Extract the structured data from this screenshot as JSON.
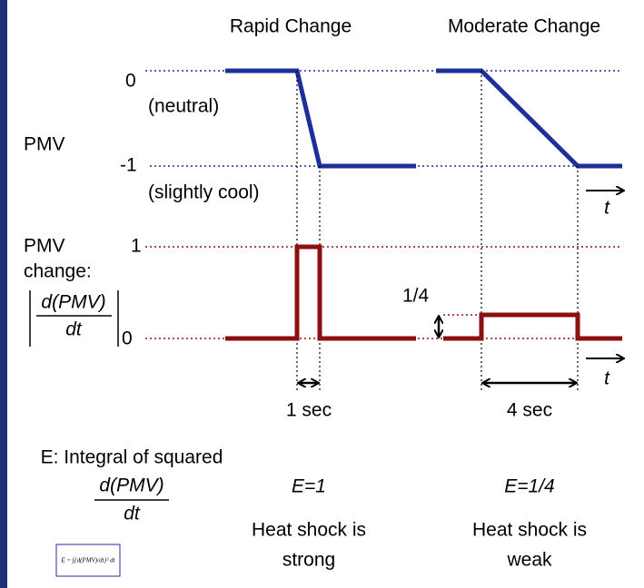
{
  "headers": {
    "rapid": "Rapid Change",
    "moderate": "Moderate Change"
  },
  "pmv_panel": {
    "label": "PMV",
    "zero": "0",
    "zero_note": "(neutral)",
    "minus_one": "-1",
    "minus_one_note": "(slightly cool)",
    "time": "t"
  },
  "change_panel": {
    "label_1": "PMV",
    "label_2": "change:",
    "numerator": "d(PMV)",
    "denominator": "dt",
    "one": "1",
    "zero": "0",
    "quarter": "1/4",
    "time": "t"
  },
  "durations": {
    "rapid": "1 sec",
    "moderate": "4 sec"
  },
  "integral": {
    "line_1": "E: Integral of squared",
    "numerator": "d(PMV)",
    "denominator": "dt",
    "formula": "E = ∫{d(PMV)/dt}² dt"
  },
  "results": {
    "rapid_e": "E=1",
    "moderate_e": "E=1/4",
    "rapid_1": "Heat shock is",
    "rapid_2": "strong",
    "moderate_1": "Heat shock is",
    "moderate_2": "weak"
  }
}
